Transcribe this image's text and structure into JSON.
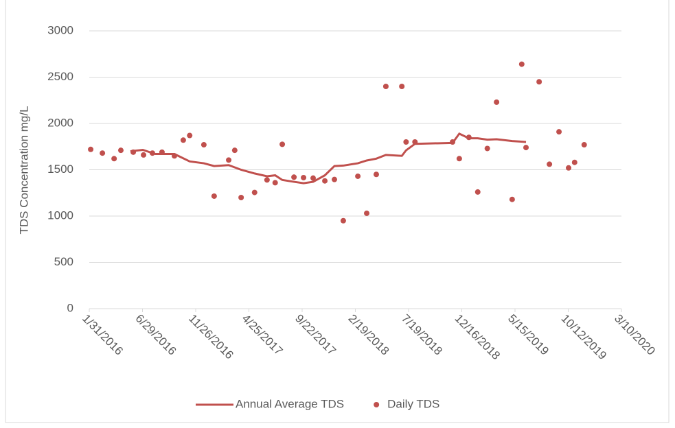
{
  "chart_data": {
    "type": "scatter",
    "y_label": "TDS Concentration mg/L",
    "xlim": [
      "1/31/2016",
      "3/10/2020"
    ],
    "xticks": [
      "1/31/2016",
      "6/29/2016",
      "11/26/2016",
      "4/25/2017",
      "9/22/2017",
      "2/19/2018",
      "7/19/2018",
      "12/16/2018",
      "5/15/2019",
      "10/12/2019",
      "3/10/2020"
    ],
    "ylim": [
      0,
      3000
    ],
    "yticks": [
      0,
      500,
      1000,
      1500,
      2000,
      2500,
      3000
    ],
    "grid": true,
    "legend": "bottom",
    "series": [
      {
        "name": "Annual Average TDS",
        "style": "line",
        "color": "#c0504d",
        "x": [
          "5/26/2016",
          "6/30/2016",
          "8/4/2016",
          "9/27/2016",
          "11/9/2016",
          "12/19/2016",
          "1/17/2017",
          "2/27/2017",
          "4/3/2017",
          "5/11/2017",
          "6/15/2017",
          "7/8/2017",
          "7/28/2017",
          "8/30/2017",
          "9/26/2017",
          "10/23/2017",
          "11/25/2017",
          "12/22/2017",
          "1/16/2018",
          "2/26/2018",
          "3/23/2018",
          "4/19/2018",
          "5/16/2018",
          "6/30/2018",
          "7/12/2018",
          "8/6/2018",
          "11/20/2018",
          "12/9/2018",
          "1/5/2019",
          "1/30/2019",
          "2/26/2019",
          "3/24/2019",
          "5/7/2019",
          "6/15/2019"
        ],
        "values": [
          1700,
          1715,
          1670,
          1670,
          1590,
          1570,
          1540,
          1550,
          1500,
          1460,
          1430,
          1440,
          1390,
          1370,
          1355,
          1370,
          1440,
          1540,
          1545,
          1570,
          1600,
          1620,
          1660,
          1650,
          1710,
          1780,
          1790,
          1890,
          1840,
          1840,
          1825,
          1830,
          1810,
          1800
        ]
      },
      {
        "name": "Daily TDS",
        "style": "markers",
        "color": "#c0504d",
        "x": [
          "2/4/2016",
          "3/8/2016",
          "4/10/2016",
          "4/29/2016",
          "6/3/2016",
          "7/2/2016",
          "7/27/2016",
          "8/23/2016",
          "9/27/2016",
          "10/22/2016",
          "11/9/2016",
          "12/19/2016",
          "1/17/2017",
          "2/27/2017",
          "3/16/2017",
          "4/3/2017",
          "5/11/2017",
          "6/15/2017",
          "7/8/2017",
          "7/28/2017",
          "8/30/2017",
          "9/26/2017",
          "10/23/2017",
          "11/25/2017",
          "12/22/2017",
          "1/16/2018",
          "2/26/2018",
          "3/23/2018",
          "4/19/2018",
          "5/16/2018",
          "6/30/2018",
          "7/12/2018",
          "8/6/2018",
          "11/20/2018",
          "12/9/2018",
          "1/5/2019",
          "1/30/2019",
          "2/26/2019",
          "3/24/2019",
          "5/7/2019",
          "6/3/2019",
          "6/15/2019",
          "7/22/2019",
          "8/20/2019",
          "9/16/2019",
          "10/13/2019",
          "10/30/2019",
          "11/26/2019"
        ],
        "values": [
          1720,
          1680,
          1620,
          1710,
          1690,
          1660,
          1680,
          1690,
          1650,
          1820,
          1870,
          1770,
          1215,
          1605,
          1710,
          1200,
          1255,
          1390,
          1360,
          1775,
          1420,
          1415,
          1410,
          1380,
          1395,
          950,
          1430,
          1030,
          1450,
          2400,
          2400,
          1800,
          1800,
          1800,
          1620,
          1850,
          1260,
          1730,
          2230,
          1180,
          2640,
          1740,
          2450,
          1560,
          1910,
          1520,
          1580,
          1770
        ]
      }
    ]
  }
}
